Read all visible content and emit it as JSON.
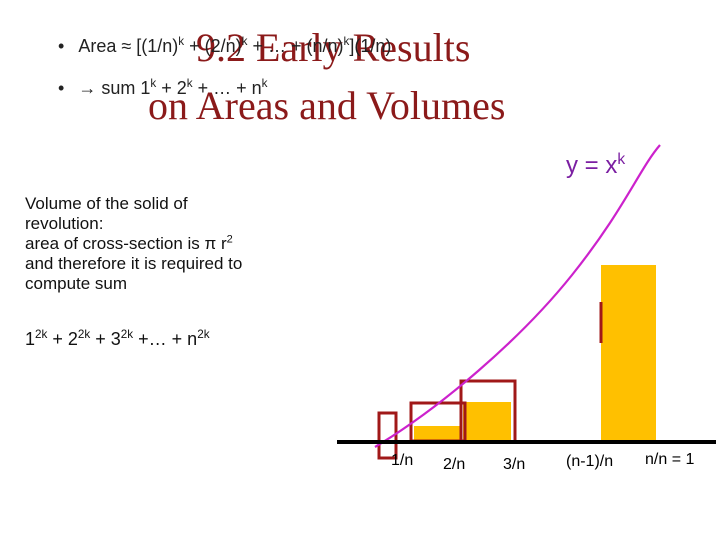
{
  "slide": {
    "title_line1": "9.2  Early Results",
    "title_line2": "on Areas and Volumes",
    "bullets": [
      {
        "prefix": "Area ≈ [(1/n)",
        "sup1": "k",
        "mid1": " + (2/n)",
        "sup2": "k",
        "mid2": " + … + (n/n)",
        "sup3": "k",
        "suffix": "](1/n)"
      },
      {
        "prefix": "→ sum 1",
        "sup1": "k",
        "mid1": " + 2",
        "sup2": "k",
        "mid2": " + … + n",
        "sup3": "k",
        "suffix": ""
      }
    ],
    "curve_label_base": "y = x",
    "curve_label_exp": "k",
    "volume_text_lines": [
      "Volume of the solid of",
      "revolution:",
      "area of cross-section is π r",
      "and therefore it is required to",
      "compute sum"
    ],
    "volume_text_r_exp": "2",
    "sum_formula": {
      "t1": "1",
      "e1": "2k",
      "t2": " + 2",
      "e2": "2k",
      "t3": " + 3",
      "e3": "2k",
      "t4": " +… + n",
      "e4": "2k"
    },
    "x_ticks": [
      "1/n",
      "2/n",
      "3/n",
      "(n-1)/n",
      "n/n = 1"
    ],
    "colors": {
      "title": "#8b1a1a",
      "curve": "#cc22cc",
      "bar_fill": "#ffc000",
      "box_stroke": "#a01818",
      "axis": "#000000"
    },
    "icons": [
      "bullet-icon"
    ]
  }
}
